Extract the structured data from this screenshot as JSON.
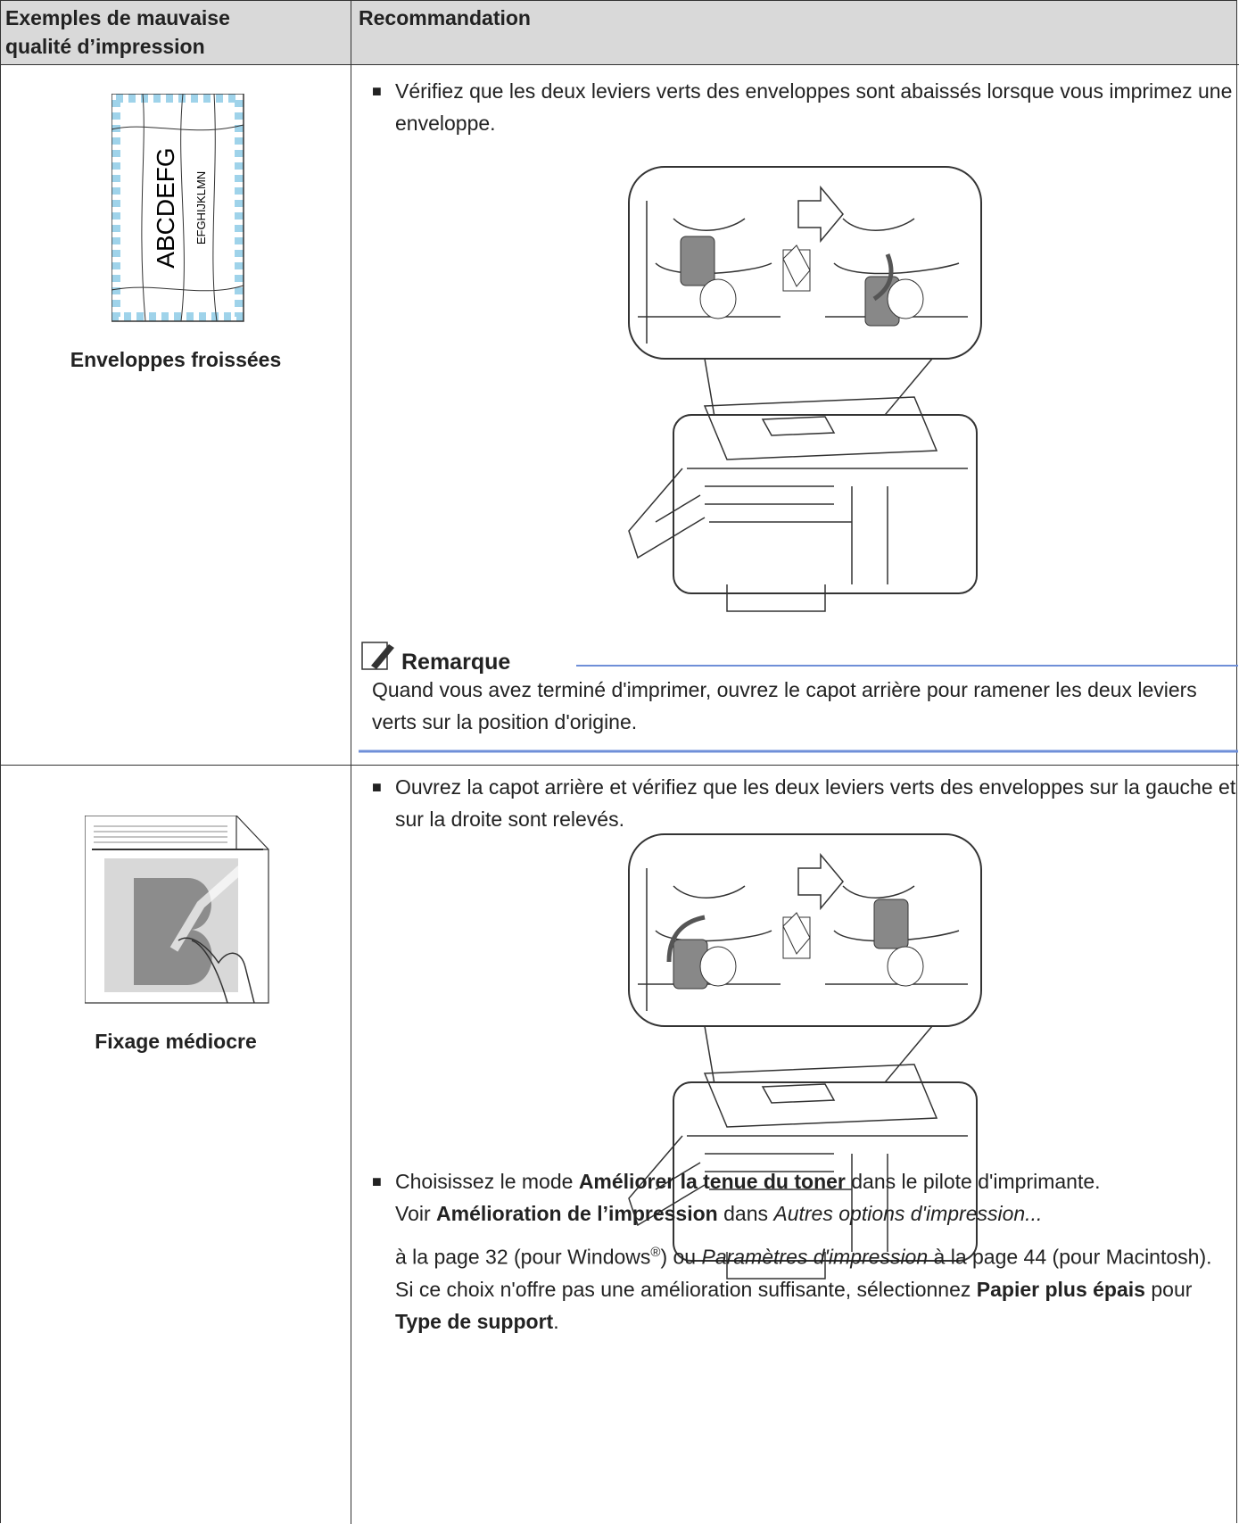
{
  "header": {
    "columns": [
      "Exemples de mauvaise qualité d’impression",
      "Recommandation"
    ]
  },
  "rows": [
    {
      "example": {
        "image_text": [
          "ABCDEFG",
          "EFGHIJKLMN"
        ],
        "caption": "Enveloppes froissées"
      },
      "recommendation": {
        "bullets": [
          [
            "Vérifiez que les deux leviers verts des enveloppes sont abaissés lorsque vous imprimez une enveloppe."
          ]
        ],
        "note": {
          "title": "Remarque",
          "text": "Quand vous avez terminé d'imprimer, ouvrez le capot arrière pour ramener les deux leviers verts sur la position d'origine."
        }
      }
    },
    {
      "example": {
        "caption": "Fixage médiocre"
      },
      "recommendation": {
        "bullets": [
          [
            "Ouvrez la capot arrière et vérifiez que les deux leviers verts des enveloppes sur la gauche et sur la droite sont relevés."
          ],
          [
            [
              "Choisissez le mode ",
              "Améliorer la tenue du toner",
              " dans le pilote d'imprimante."
            ],
            [
              "Voir ",
              "Amélioration de l’impression",
              " dans ",
              "Autres options d'impression..."
            ],
            [
              "à la page 32 (pour Windows",
              "®",
              ") ou ",
              "Paramètres d'impression",
              " à la page 44 (pour Macintosh)."
            ],
            [
              "Si ce choix n'offre pas une amélioration suffisante, sélectionnez ",
              "Papier plus épais",
              " pour ",
              "Type de support",
              "."
            ]
          ]
        ]
      }
    }
  ]
}
